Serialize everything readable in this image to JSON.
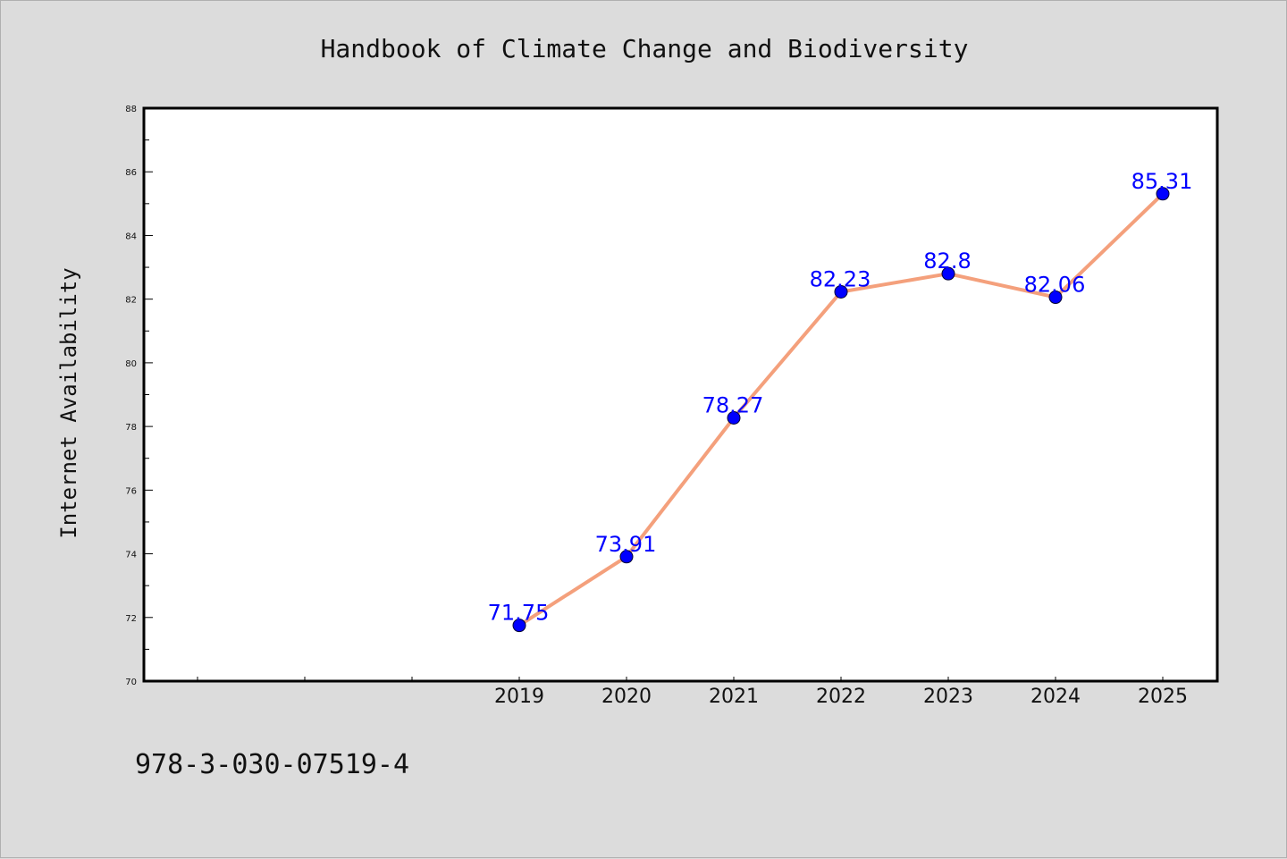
{
  "page": {
    "background": "#dcdcdc",
    "footer_code": "978-3-030-07519-4"
  },
  "chart_data": {
    "type": "line",
    "title": "Handbook of Climate Change and Biodiversity",
    "xlabel": "",
    "ylabel": "Internet Availability",
    "categories": [
      "2019",
      "2020",
      "2021",
      "2022",
      "2023",
      "2024",
      "2025"
    ],
    "series": [
      {
        "values": [
          71.75,
          73.91,
          78.27,
          82.23,
          82.8,
          82.06,
          85.31
        ],
        "color": "#f4a07c",
        "marker_color": "#0000ff"
      }
    ],
    "data_labels": [
      "71.75",
      "73.91",
      "78.27",
      "82.23",
      "82.8",
      "82.06",
      "85.31"
    ],
    "label_color": "#0000ff",
    "ylim": [
      70,
      88
    ],
    "yticks": [
      "70",
      "72",
      "74",
      "76",
      "78",
      "80",
      "82",
      "84",
      "86",
      "88"
    ],
    "leading_empty_categories": 3,
    "grid": false,
    "legend": "none"
  }
}
